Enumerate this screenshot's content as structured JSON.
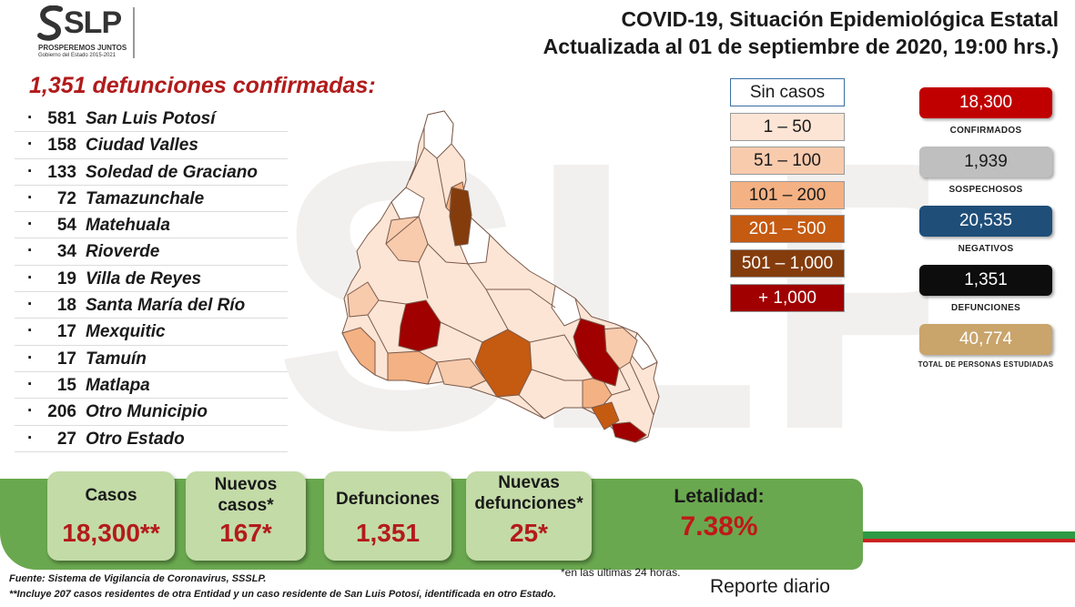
{
  "header": {
    "logo_text": "SLP",
    "logo_sub1": "PROSPEREMOS JUNTOS",
    "logo_sub2": "Gobierno del Estado 2015-2021",
    "title_line1": "COVID-19, Situación Epidemiológica Estatal",
    "title_line2": "Actualizada al 01 de septiembre de 2020, 19:00 hrs.)"
  },
  "deaths": {
    "heading": "1,351 defunciones confirmadas:",
    "municipalities": [
      {
        "count": "581",
        "name": "San Luis Potosí"
      },
      {
        "count": "158",
        "name": "Ciudad Valles"
      },
      {
        "count": "133",
        "name": "Soledad de Graciano"
      },
      {
        "count": "72",
        "name": "Tamazunchale"
      },
      {
        "count": "54",
        "name": "Matehuala"
      },
      {
        "count": "34",
        "name": "Rioverde"
      },
      {
        "count": "19",
        "name": "Villa de Reyes"
      },
      {
        "count": "18",
        "name": "Santa María del Río"
      },
      {
        "count": "17",
        "name": "Mexquitic"
      },
      {
        "count": "17",
        "name": "Tamuín"
      },
      {
        "count": "15",
        "name": "Matlapa"
      },
      {
        "count": "206",
        "name": "Otro Municipio"
      },
      {
        "count": "27",
        "name": "Otro Estado"
      }
    ]
  },
  "legend": [
    {
      "label": "Sin casos",
      "color": "#ffffff",
      "text": "#1a1a1a"
    },
    {
      "label": "1 – 50",
      "color": "#fde5d6",
      "text": "#1a1a1a"
    },
    {
      "label": "51 – 100",
      "color": "#f8cbad",
      "text": "#1a1a1a"
    },
    {
      "label": "101 – 200",
      "color": "#f4b183",
      "text": "#1a1a1a"
    },
    {
      "label": "201 – 500",
      "color": "#c55a11",
      "text": "#ffffff"
    },
    {
      "label": "501 – 1,000",
      "color": "#843c0c",
      "text": "#ffffff"
    },
    {
      "label": "+ 1,000",
      "color": "#a00000",
      "text": "#ffffff"
    }
  ],
  "stats": [
    {
      "value": "18,300",
      "label": "CONFIRMADOS",
      "color": "#c00000",
      "text": "#ffffff"
    },
    {
      "value": "1,939",
      "label": "SOSPECHOSOS",
      "color": "#bfbfbf",
      "text": "#1a1a1a"
    },
    {
      "value": "20,535",
      "label": "NEGATIVOS",
      "color": "#1f4e79",
      "text": "#ffffff"
    },
    {
      "value": "1,351",
      "label": "DEFUNCIONES",
      "color": "#0d0d0d",
      "text": "#ffffff"
    },
    {
      "value": "40,774",
      "label": "TOTAL DE PERSONAS ESTUDIADAS",
      "color": "#c9a46b",
      "text": "#ffffff"
    }
  ],
  "summary": {
    "casos_label": "Casos",
    "casos_value": "18,300**",
    "nuevos_label_1": "Nuevos",
    "nuevos_label_2": "casos*",
    "nuevos_value": "167*",
    "defunciones_label": "Defunciones",
    "defunciones_value": "1,351",
    "nuevas_def_label_1": "Nuevas",
    "nuevas_def_label_2": "defunciones*",
    "nuevas_def_value": "25*",
    "letalidad_label": "Letalidad:",
    "letalidad_value": "7.38%"
  },
  "footer": {
    "source": "Fuente: Sistema de Vigilancia de Coronavirus, SSSLP.",
    "note": "**Incluye 207 casos residentes de otra Entidad y un caso residente de San Luis Potosí, identificada en otro Estado.",
    "last24": "*en las ultimas 24 horas.",
    "report": "Reporte diario"
  }
}
